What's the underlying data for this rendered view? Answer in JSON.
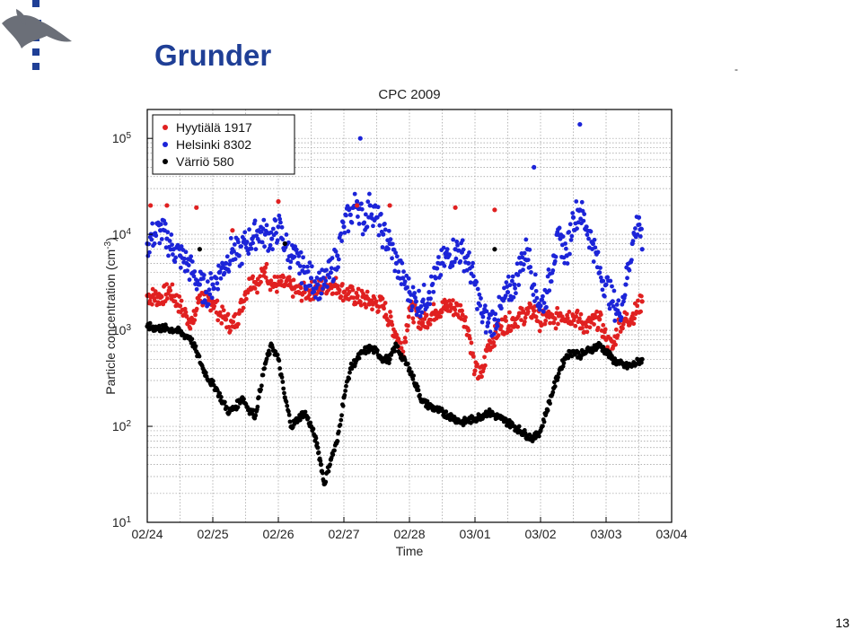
{
  "slide": {
    "title": "Grunder",
    "page_number": "13",
    "dash_mark": "-"
  },
  "logo": {
    "icon": "university-of-helsinki-flame-logo",
    "color": "#1f3f96"
  },
  "chart_data": {
    "type": "scatter",
    "title": "CPC 2009",
    "xlabel": "Time",
    "ylabel": "Particle concentration (cm",
    "ylabel_exponent": "-3",
    "ylabel_close": ")",
    "yscale": "log",
    "ylim": [
      10,
      200000
    ],
    "xlim": [
      0,
      8
    ],
    "grid": true,
    "legend_position": "top-left",
    "x_ticks": [
      "02/24",
      "02/25",
      "02/26",
      "02/27",
      "02/28",
      "03/01",
      "03/02",
      "03/03",
      "03/04"
    ],
    "y_ticks": [
      {
        "base": "10",
        "exp": "1",
        "value": 10
      },
      {
        "base": "10",
        "exp": "2",
        "value": 100
      },
      {
        "base": "10",
        "exp": "3",
        "value": 1000
      },
      {
        "base": "10",
        "exp": "4",
        "value": 10000
      },
      {
        "base": "10",
        "exp": "5",
        "value": 100000
      }
    ],
    "series": [
      {
        "name": "Hyytiälä 1917",
        "color": "#e02020",
        "x": [
          0.0,
          0.2,
          0.35,
          0.5,
          0.6,
          0.7,
          0.8,
          0.9,
          1.0,
          1.1,
          1.2,
          1.3,
          1.4,
          1.5,
          1.6,
          1.7,
          1.8,
          1.9,
          2.0,
          2.1,
          2.2,
          2.3,
          2.4,
          2.5,
          2.6,
          2.7,
          2.8,
          2.9,
          3.0,
          3.2,
          3.4,
          3.6,
          3.8,
          3.9,
          4.0,
          4.2,
          4.4,
          4.6,
          4.8,
          4.9,
          5.0,
          5.1,
          5.2,
          5.4,
          5.6,
          5.8,
          5.9,
          6.0,
          6.1,
          6.2,
          6.3,
          6.5,
          6.7,
          6.9,
          7.0,
          7.1,
          7.2,
          7.4,
          7.55
        ],
        "y": [
          2300,
          2200,
          2600,
          1800,
          1400,
          1200,
          2300,
          2000,
          2000,
          1500,
          1300,
          1100,
          1500,
          2500,
          3500,
          3000,
          4500,
          3000,
          3000,
          3000,
          2800,
          2500,
          2500,
          2600,
          2700,
          2900,
          3000,
          2900,
          2500,
          2200,
          2000,
          1800,
          900,
          600,
          1700,
          1200,
          1600,
          1800,
          1600,
          1000,
          380,
          330,
          700,
          1100,
          1300,
          1500,
          1600,
          1200,
          1400,
          1200,
          1500,
          1400,
          1100,
          1300,
          800,
          650,
          1200,
          1400,
          2000
        ]
      },
      {
        "name": "Helsinki 8302",
        "color": "#1c24d8",
        "x": [
          0.0,
          0.1,
          0.2,
          0.3,
          0.4,
          0.5,
          0.6,
          0.7,
          0.8,
          0.9,
          1.0,
          1.1,
          1.2,
          1.3,
          1.4,
          1.5,
          1.6,
          1.7,
          1.8,
          1.9,
          2.0,
          2.1,
          2.2,
          2.3,
          2.4,
          2.5,
          2.6,
          2.7,
          2.8,
          2.9,
          3.0,
          3.1,
          3.2,
          3.3,
          3.4,
          3.5,
          3.6,
          3.7,
          3.8,
          3.9,
          4.0,
          4.1,
          4.2,
          4.3,
          4.4,
          4.5,
          4.6,
          4.7,
          4.8,
          4.9,
          5.0,
          5.1,
          5.2,
          5.3,
          5.4,
          5.5,
          5.6,
          5.7,
          5.8,
          5.9,
          6.0,
          6.1,
          6.2,
          6.3,
          6.4,
          6.5,
          6.6,
          6.7,
          6.8,
          6.9,
          7.0,
          7.1,
          7.2,
          7.3,
          7.4,
          7.5,
          7.55
        ],
        "y": [
          8000,
          10000,
          11000,
          9000,
          7000,
          6000,
          5000,
          4000,
          3000,
          2500,
          3000,
          4000,
          5000,
          7000,
          6000,
          8000,
          9000,
          11000,
          10000,
          9000,
          12000,
          8000,
          6000,
          5000,
          4000,
          3500,
          3000,
          3000,
          4000,
          6000,
          12000,
          16000,
          22000,
          13000,
          20000,
          15000,
          10000,
          8000,
          5000,
          3500,
          2500,
          2000,
          2000,
          2500,
          3500,
          5000,
          6000,
          7000,
          6500,
          5000,
          3000,
          1500,
          1200,
          1300,
          1700,
          2500,
          3000,
          5000,
          7000,
          3000,
          1800,
          2500,
          6000,
          9000,
          6000,
          15000,
          18000,
          12000,
          8000,
          4000,
          3000,
          2000,
          1500,
          3000,
          8000,
          15000,
          7000
        ]
      },
      {
        "name": "Värriö 580",
        "color": "#000000",
        "x": [
          0.0,
          0.15,
          0.3,
          0.45,
          0.55,
          0.65,
          0.75,
          0.85,
          0.95,
          1.05,
          1.15,
          1.25,
          1.35,
          1.45,
          1.55,
          1.65,
          1.7,
          1.8,
          1.9,
          2.0,
          2.1,
          2.2,
          2.3,
          2.4,
          2.5,
          2.55,
          2.6,
          2.65,
          2.7,
          2.8,
          2.9,
          3.0,
          3.1,
          3.2,
          3.3,
          3.4,
          3.5,
          3.6,
          3.7,
          3.8,
          3.9,
          4.0,
          4.2,
          4.4,
          4.6,
          4.8,
          5.0,
          5.2,
          5.4,
          5.6,
          5.8,
          5.9,
          6.0,
          6.1,
          6.2,
          6.3,
          6.4,
          6.5,
          6.6,
          6.7,
          6.8,
          6.9,
          7.0,
          7.1,
          7.2,
          7.3,
          7.4,
          7.55
        ],
        "y": [
          1100,
          1050,
          1050,
          1000,
          900,
          850,
          600,
          400,
          300,
          250,
          180,
          140,
          160,
          200,
          150,
          130,
          200,
          450,
          700,
          500,
          200,
          100,
          120,
          140,
          100,
          80,
          60,
          40,
          25,
          45,
          70,
          200,
          400,
          500,
          600,
          650,
          600,
          500,
          500,
          700,
          500,
          400,
          180,
          150,
          130,
          110,
          120,
          140,
          120,
          100,
          80,
          75,
          90,
          150,
          250,
          400,
          550,
          600,
          550,
          600,
          650,
          700,
          600,
          500,
          450,
          420,
          430,
          500
        ]
      }
    ],
    "outliers": [
      {
        "series": 0,
        "x": 0.05,
        "y": 20000
      },
      {
        "series": 0,
        "x": 0.3,
        "y": 20000
      },
      {
        "series": 0,
        "x": 0.75,
        "y": 19000
      },
      {
        "series": 0,
        "x": 1.3,
        "y": 11000
      },
      {
        "series": 0,
        "x": 2.0,
        "y": 22000
      },
      {
        "series": 0,
        "x": 3.2,
        "y": 20000
      },
      {
        "series": 0,
        "x": 3.7,
        "y": 20000
      },
      {
        "series": 0,
        "x": 4.7,
        "y": 19000
      },
      {
        "series": 0,
        "x": 5.3,
        "y": 18000
      },
      {
        "series": 1,
        "x": 6.6,
        "y": 140000
      },
      {
        "series": 1,
        "x": 3.25,
        "y": 100000
      },
      {
        "series": 1,
        "x": 5.9,
        "y": 50000
      },
      {
        "series": 2,
        "x": 0.8,
        "y": 7000
      },
      {
        "series": 2,
        "x": 5.3,
        "y": 7000
      },
      {
        "series": 2,
        "x": 2.1,
        "y": 8000
      }
    ]
  }
}
